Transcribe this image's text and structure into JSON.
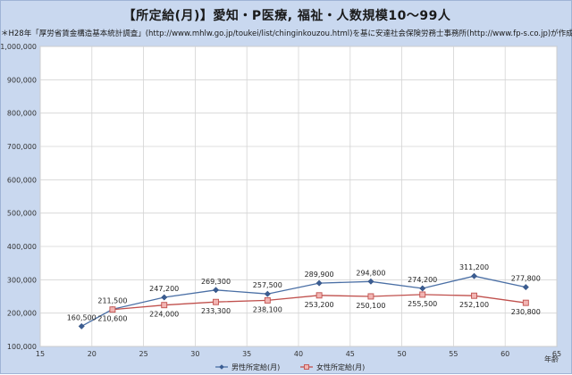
{
  "chart_data": {
    "type": "line",
    "title": "【所定給(月)】愛知・P医療, 福祉・人数規模10～99人",
    "subtitle": "＊H28年「厚労省賃金構造基本統計調査」(http://www.mhlw.go.jp/toukei/list/chinginkouzou.html)を基に安達社会保険労務士事務所(http://www.fp-s.co.jp)が作成",
    "xlabel": "年齢",
    "ylabel": "",
    "xlim": [
      15,
      65
    ],
    "ylim": [
      100000,
      1000000
    ],
    "x_ticks": [
      "15",
      "20",
      "25",
      "30",
      "35",
      "40",
      "45",
      "50",
      "55",
      "60",
      "65"
    ],
    "y_ticks": [
      "100,000",
      "200,000",
      "300,000",
      "400,000",
      "500,000",
      "600,000",
      "700,000",
      "800,000",
      "900,000",
      "1,000,000"
    ],
    "grid": true,
    "legend_position": "bottom",
    "series": [
      {
        "name": "男性所定給(月)",
        "color": "#4a6fa5",
        "marker": "diamond",
        "x": [
          19,
          22,
          27,
          32,
          37,
          42,
          47,
          52,
          57,
          62
        ],
        "values": [
          160500,
          211500,
          247200,
          269300,
          257500,
          289900,
          294800,
          274200,
          311200,
          277800
        ],
        "labels": [
          "160,500",
          "211,500",
          "247,200",
          "269,300",
          "257,500",
          "289,900",
          "294,800",
          "274,200",
          "311,200",
          "277,800"
        ]
      },
      {
        "name": "女性所定給(月)",
        "color": "#c0504d",
        "marker": "square",
        "x": [
          22,
          27,
          32,
          37,
          42,
          47,
          52,
          57,
          62
        ],
        "values": [
          210600,
          224000,
          233300,
          238100,
          253200,
          250100,
          255500,
          252100,
          230800
        ],
        "labels": [
          "210,600",
          "224,000",
          "233,300",
          "238,100",
          "253,200",
          "250,100",
          "255,500",
          "252,100",
          "230,800"
        ]
      }
    ]
  }
}
